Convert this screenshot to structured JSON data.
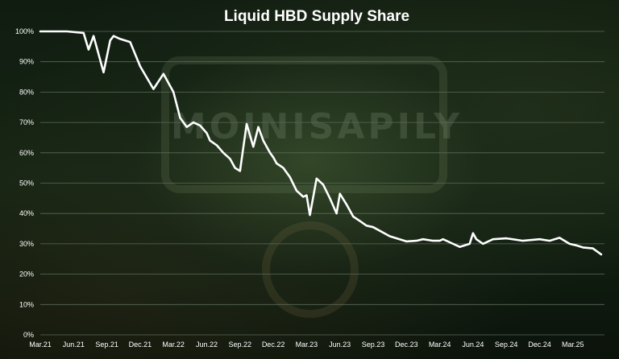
{
  "chart_data": {
    "type": "line",
    "title": "Liquid HBD Supply Share",
    "xlabel": "",
    "ylabel": "",
    "ylim": [
      0,
      100
    ],
    "y_ticks": [
      "0%",
      "10%",
      "20%",
      "30%",
      "40%",
      "50%",
      "60%",
      "70%",
      "80%",
      "90%",
      "100%"
    ],
    "x_ticks": [
      "Mar.21",
      "Jun.21",
      "Sep.21",
      "Dec.21",
      "Mar.22",
      "Jun.22",
      "Sep.22",
      "Dec.22",
      "Mar.23",
      "Jun.23",
      "Sep.23",
      "Dec.23",
      "Mar.24",
      "Jun.24",
      "Sep.24",
      "Dec.24",
      "Mar.25"
    ],
    "grid": true,
    "line_color": "#ffffff",
    "grid_color": "#5a6a58",
    "watermark_text": "MOINISAPILY",
    "series": [
      {
        "x": [
          0,
          0.8,
          1.3,
          1.45,
          1.6,
          1.9,
          2.1,
          2.2,
          2.4,
          2.7,
          3.0,
          3.4,
          3.7,
          4.0,
          4.2,
          4.4,
          4.6,
          4.8,
          5.0,
          5.1,
          5.3,
          5.5,
          5.7,
          5.85,
          6.0,
          6.2,
          6.4,
          6.55,
          6.7,
          6.9,
          7.0,
          7.1,
          7.3,
          7.5,
          7.7,
          7.9,
          8.0,
          8.1,
          8.3,
          8.5,
          8.7,
          8.9,
          9.0,
          9.2,
          9.4,
          9.6,
          9.8,
          10.0,
          10.5,
          11.0,
          11.3,
          11.5,
          11.8,
          12.0,
          12.1,
          12.3,
          12.6,
          12.9,
          13.0,
          13.1,
          13.3,
          13.6,
          14.0,
          14.5,
          15.0,
          15.3,
          15.6,
          15.9,
          16.1,
          16.3,
          16.6,
          16.85
        ],
        "y": [
          100,
          100,
          99.5,
          94,
          98.5,
          86.5,
          97,
          98.5,
          97.5,
          96.5,
          88.5,
          81,
          86,
          80,
          71.5,
          68.5,
          70,
          69,
          66.5,
          64,
          62.5,
          60,
          58,
          55,
          54,
          69.5,
          62,
          68.5,
          64,
          60,
          58.5,
          56.5,
          55,
          52,
          47.5,
          45.5,
          46,
          39.5,
          51.5,
          49.5,
          45,
          40,
          46.5,
          43,
          39,
          37.5,
          36,
          35.5,
          32.5,
          30.8,
          31,
          31.5,
          31,
          31,
          31.5,
          30.5,
          29,
          30,
          33.5,
          31.5,
          30,
          31.5,
          31.8,
          31,
          31.5,
          31,
          32,
          30,
          29.5,
          28.8,
          28.5,
          26.5
        ]
      }
    ]
  }
}
